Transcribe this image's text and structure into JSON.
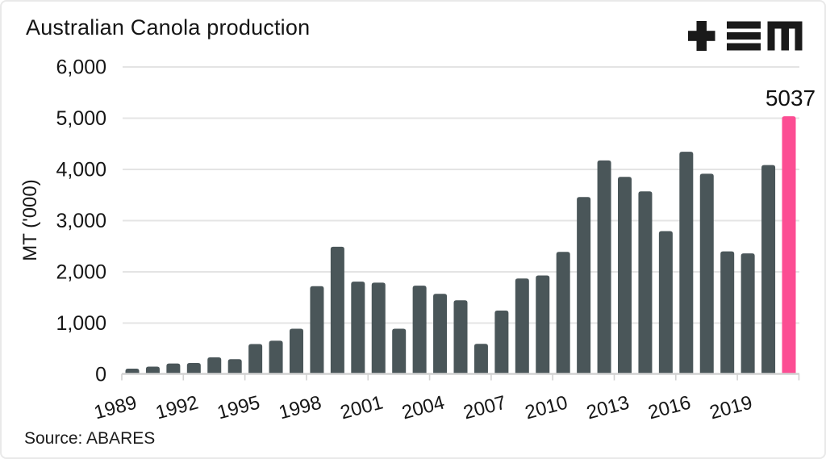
{
  "header": {
    "title": "Australian Canola production",
    "logo_name": "tem-logo"
  },
  "footer": {
    "source": "Source: ABARES"
  },
  "colors": {
    "background": "#ffffff",
    "border": "#e9e9e9",
    "grid": "#e4e4e4",
    "axis": "#d2d2d2",
    "text": "#161616",
    "bar": "#4a5659",
    "highlight": "#fc4d93"
  },
  "chart_data": {
    "type": "bar",
    "title": "Australian Canola production",
    "xlabel": "",
    "ylabel": "MT ('000)",
    "ylim": [
      0,
      6000
    ],
    "grid": true,
    "legend_position": "none",
    "categories": [
      "1989",
      "1990",
      "1991",
      "1992",
      "1993",
      "1994",
      "1995",
      "1996",
      "1997",
      "1998",
      "1999",
      "2000",
      "2001",
      "2002",
      "2003",
      "2004",
      "2005",
      "2006",
      "2007",
      "2008",
      "2009",
      "2010",
      "2011",
      "2012",
      "2013",
      "2014",
      "2015",
      "2016",
      "2017",
      "2018",
      "2019",
      "2020",
      "2021"
    ],
    "values": [
      110,
      150,
      210,
      220,
      330,
      295,
      590,
      655,
      890,
      1720,
      2490,
      1810,
      1790,
      890,
      1730,
      1570,
      1445,
      595,
      1245,
      1870,
      1930,
      2390,
      3460,
      4175,
      3855,
      3570,
      2795,
      4345,
      3915,
      2400,
      2360,
      4085,
      5037
    ],
    "ytick_values": [
      0,
      1000,
      2000,
      3000,
      4000,
      5000,
      6000
    ],
    "ytick_labels": [
      "0",
      "1,000",
      "2,000",
      "3,000",
      "4,000",
      "5,000",
      "6,000"
    ],
    "xtick_labels": [
      "1989",
      "1992",
      "1995",
      "1998",
      "2001",
      "2004",
      "2007",
      "2010",
      "2013",
      "2016",
      "2019"
    ],
    "xtick_every": 3,
    "bar_color": "#4a5659",
    "highlight": {
      "index": 32,
      "label": "5037",
      "color": "#fc4d93"
    }
  }
}
